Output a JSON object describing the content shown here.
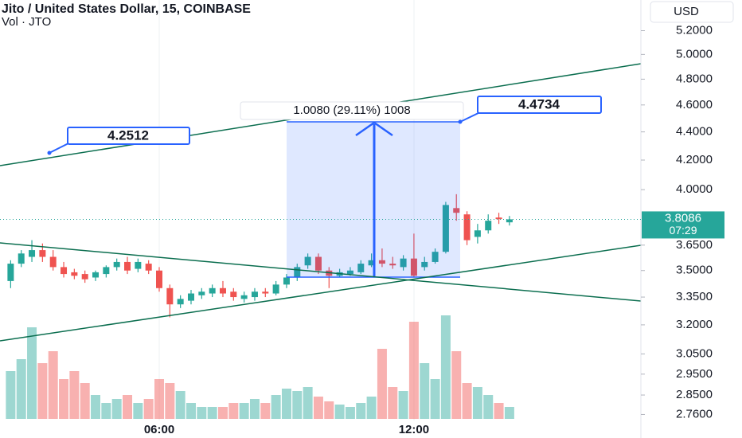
{
  "chart_data": {
    "type": "candlestick",
    "title": "Jito / United States Dollar, 15, COINBASE",
    "subtitle": "Vol · JTO",
    "currency": "USD",
    "log_scale": true,
    "up_color": "#26a69a",
    "down_color": "#ef5350",
    "ylim": [
      2.69,
      5.47
    ],
    "yticks": [
      {
        "value": 5.2,
        "label": "5.2000"
      },
      {
        "value": 5.0,
        "label": "5.0000"
      },
      {
        "value": 4.8,
        "label": "4.8000"
      },
      {
        "value": 4.6,
        "label": "4.6000"
      },
      {
        "value": 4.4,
        "label": "4.4000"
      },
      {
        "value": 4.2,
        "label": "4.2000"
      },
      {
        "value": 4.0,
        "label": "4.0000"
      },
      {
        "value": 3.65,
        "label": "3.6500"
      },
      {
        "value": 3.5,
        "label": "3.5000"
      },
      {
        "value": 3.35,
        "label": "3.3500"
      },
      {
        "value": 3.2,
        "label": "3.2000"
      },
      {
        "value": 3.05,
        "label": "3.0500"
      },
      {
        "value": 2.95,
        "label": "2.9500"
      },
      {
        "value": 2.85,
        "label": "2.8500"
      },
      {
        "value": 2.76,
        "label": "2.7600"
      }
    ],
    "categories": [
      null,
      null,
      null,
      null,
      null,
      null,
      null,
      null,
      null,
      null,
      null,
      null,
      null,
      null,
      "06:00",
      null,
      null,
      null,
      null,
      null,
      null,
      null,
      null,
      null,
      null,
      null,
      null,
      null,
      null,
      null,
      null,
      null,
      null,
      null,
      null,
      null,
      null,
      null,
      "12:00",
      null,
      null,
      null,
      null,
      null,
      null,
      null,
      null,
      null
    ],
    "open": [
      3.44,
      3.54,
      3.58,
      3.62,
      3.58,
      3.52,
      3.49,
      3.48,
      3.46,
      3.48,
      3.52,
      3.55,
      3.51,
      3.54,
      3.5,
      3.4,
      3.31,
      3.33,
      3.36,
      3.37,
      3.4,
      3.38,
      3.34,
      3.35,
      3.38,
      3.37,
      3.42,
      3.46,
      3.53,
      3.58,
      3.5,
      3.47,
      3.48,
      3.49,
      3.53,
      3.56,
      3.54,
      3.52,
      3.57,
      3.52,
      3.55,
      3.61,
      3.88,
      3.84,
      3.7,
      3.74,
      3.82,
      3.79
    ],
    "high": [
      3.56,
      3.62,
      3.68,
      3.66,
      3.62,
      3.55,
      3.51,
      3.5,
      3.5,
      3.53,
      3.57,
      3.58,
      3.57,
      3.56,
      3.52,
      3.42,
      3.36,
      3.39,
      3.4,
      3.42,
      3.44,
      3.4,
      3.38,
      3.4,
      3.4,
      3.44,
      3.48,
      3.54,
      3.6,
      3.6,
      3.52,
      3.51,
      3.52,
      3.56,
      3.6,
      3.63,
      3.58,
      3.59,
      3.72,
      3.58,
      3.63,
      3.92,
      3.97,
      3.86,
      3.78,
      3.84,
      3.85,
      3.83
    ],
    "low": [
      3.4,
      3.52,
      3.55,
      3.55,
      3.5,
      3.46,
      3.45,
      3.43,
      3.44,
      3.46,
      3.5,
      3.48,
      3.49,
      3.48,
      3.38,
      3.24,
      3.29,
      3.31,
      3.34,
      3.35,
      3.35,
      3.33,
      3.32,
      3.33,
      3.35,
      3.36,
      3.4,
      3.44,
      3.51,
      3.48,
      3.4,
      3.46,
      3.47,
      3.48,
      3.52,
      3.52,
      3.51,
      3.5,
      3.46,
      3.5,
      3.54,
      3.6,
      3.8,
      3.65,
      3.66,
      3.72,
      3.78,
      3.77
    ],
    "close": [
      3.54,
      3.6,
      3.62,
      3.58,
      3.52,
      3.48,
      3.47,
      3.45,
      3.49,
      3.52,
      3.55,
      3.5,
      3.55,
      3.5,
      3.4,
      3.31,
      3.34,
      3.37,
      3.38,
      3.4,
      3.37,
      3.35,
      3.36,
      3.38,
      3.37,
      3.42,
      3.46,
      3.52,
      3.58,
      3.5,
      3.47,
      3.49,
      3.5,
      3.54,
      3.56,
      3.54,
      3.53,
      3.57,
      3.47,
      3.55,
      3.61,
      3.9,
      3.85,
      3.68,
      3.74,
      3.8,
      3.81,
      3.8086
    ],
    "volume": [
      60,
      75,
      115,
      70,
      85,
      50,
      60,
      45,
      30,
      20,
      25,
      30,
      20,
      25,
      50,
      45,
      35,
      20,
      15,
      15,
      15,
      20,
      20,
      25,
      20,
      30,
      38,
      35,
      40,
      28,
      22,
      18,
      15,
      20,
      28,
      88,
      40,
      35,
      122,
      70,
      50,
      130,
      85,
      45,
      40,
      30,
      20,
      15
    ],
    "volume_lim": [
      0,
      140
    ],
    "last_price": {
      "value": 3.8086,
      "label": "3.8086"
    },
    "countdown": "07:29",
    "measure_label": "1.0080 (29.11%) 1008",
    "annotations": [
      "4.2512",
      "4.4734"
    ]
  }
}
